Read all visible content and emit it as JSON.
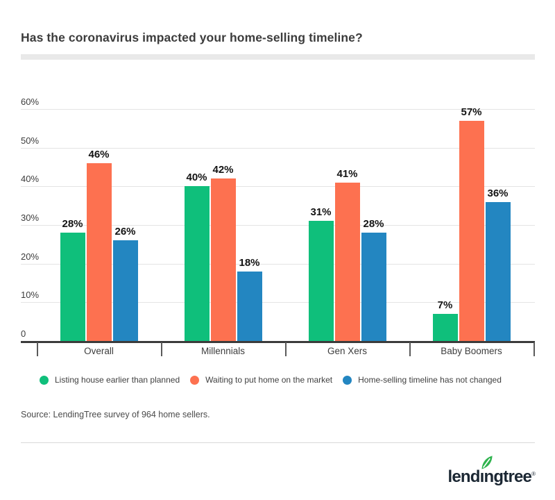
{
  "header": {
    "title": "Has the coronavirus impacted your home-selling timeline?"
  },
  "chart_data": {
    "type": "bar",
    "title": "Has the coronavirus impacted your home-selling timeline?",
    "categories": [
      "Overall",
      "Millennials",
      "Gen Xers",
      "Baby Boomers"
    ],
    "series": [
      {
        "name": "Listing house earlier than planned",
        "color": "#0fbf7b",
        "values": [
          28,
          40,
          31,
          7
        ]
      },
      {
        "name": "Waiting to put home on the market",
        "color": "#fd7150",
        "values": [
          46,
          42,
          41,
          57
        ]
      },
      {
        "name": "Home-selling timeline has not changed",
        "color": "#2386c1",
        "values": [
          26,
          18,
          28,
          36
        ]
      }
    ],
    "value_suffix": "%",
    "y_tick_labels": [
      "0",
      "10%",
      "20%",
      "30%",
      "40%",
      "50%",
      "60%"
    ],
    "ylim": [
      0,
      60
    ],
    "xlabel": "",
    "ylabel": "",
    "grid": true,
    "legend_position": "bottom",
    "value_labels_shown": true
  },
  "source": {
    "text": "Source: LendingTree survey of 964 home sellers."
  },
  "footer": {
    "logo_part1": "lend",
    "logo_dotless_i": "ı",
    "logo_part3": "ngtree",
    "registered": "®",
    "logo_leaf": "leaf-icon",
    "logo_color": "#1b2733",
    "leaf_color": "#2fb34e"
  }
}
